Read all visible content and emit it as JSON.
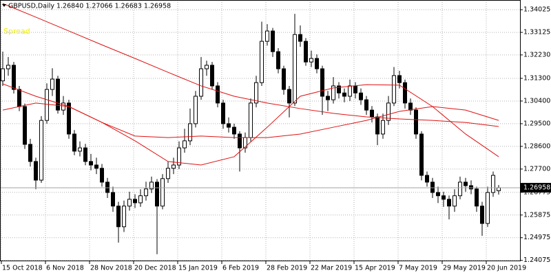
{
  "chart_data": {
    "type": "candlestick",
    "title": "GBPUSD,Daily  1.26840 1.27066 1.26683 1.26958",
    "annotation": "Spread",
    "categories": [
      "15 Oct 2018",
      null,
      null,
      null,
      null,
      null,
      null,
      null,
      "6 Nov 2018",
      null,
      null,
      null,
      null,
      null,
      null,
      null,
      "28 Nov 2018",
      null,
      null,
      null,
      null,
      null,
      null,
      null,
      "20 Dec 2018",
      null,
      null,
      null,
      null,
      null,
      null,
      null,
      "15 Jan 2019",
      null,
      null,
      null,
      null,
      null,
      null,
      null,
      "6 Feb 2019",
      null,
      null,
      null,
      null,
      null,
      null,
      null,
      "28 Feb 2019",
      null,
      null,
      null,
      null,
      null,
      null,
      null,
      "22 Mar 2019",
      null,
      null,
      null,
      null,
      null,
      null,
      null,
      "15 Apr 2019",
      null,
      null,
      null,
      null,
      null,
      null,
      null,
      "7 May 2019",
      null,
      null,
      null,
      null,
      null,
      null,
      null,
      "29 May 2019",
      null,
      null,
      null,
      null,
      null,
      null,
      null,
      "20 Jun 2019",
      null,
      null
    ],
    "open": [
      1.312,
      1.3168,
      1.3182,
      1.3086,
      1.3018,
      1.2868,
      1.28,
      1.2726,
      1.2963,
      1.3086,
      1.3127,
      1.3004,
      1.3032,
      1.2909,
      1.2841,
      1.2854,
      1.28,
      1.2786,
      1.2773,
      1.2718,
      1.2677,
      1.2623,
      1.2541,
      1.2623,
      1.265,
      1.2636,
      1.2664,
      1.2691,
      1.2718,
      1.2623,
      1.2732,
      1.2773,
      1.2786,
      1.2854,
      1.2882,
      1.295,
      1.3059,
      1.3168,
      1.3182,
      1.31,
      1.3032,
      1.295,
      1.2936,
      1.2909,
      1.2854,
      1.2895,
      1.3032,
      1.3113,
      1.3277,
      1.3318,
      1.3236,
      1.3168,
      1.3086,
      1.3032,
      1.3304,
      1.3277,
      1.3195,
      1.3209,
      1.3168,
      1.3059,
      1.3045,
      1.31,
      1.3072,
      1.3059,
      1.31,
      1.3072,
      1.3045,
      1.3004,
      1.2977,
      1.2909,
      1.2963,
      1.3032,
      1.3141,
      1.3113,
      1.3032,
      1.3004,
      1.2909,
      1.2745,
      1.2718,
      1.2677,
      1.2664,
      1.265,
      1.2623,
      1.2664,
      1.2718,
      1.2704,
      1.2691,
      1.2623,
      1.2554,
      1.2677,
      1.2684
    ],
    "high": [
      1.3236,
      1.3215,
      1.3195,
      1.31,
      1.303,
      1.289,
      1.2815,
      1.298,
      1.311,
      1.317,
      1.314,
      1.306,
      1.3045,
      1.2925,
      1.288,
      1.287,
      1.283,
      1.2815,
      1.279,
      1.2735,
      1.27,
      1.264,
      1.2645,
      1.268,
      1.267,
      1.269,
      1.272,
      1.274,
      1.273,
      1.275,
      1.28,
      1.2815,
      1.288,
      1.293,
      1.301,
      1.308,
      1.3215,
      1.32,
      1.3195,
      1.3115,
      1.3045,
      1.2975,
      1.295,
      1.292,
      1.2915,
      1.305,
      1.314,
      1.3355,
      1.3345,
      1.333,
      1.325,
      1.318,
      1.31,
      1.3386,
      1.334,
      1.329,
      1.324,
      1.3225,
      1.318,
      1.308,
      1.3135,
      1.3115,
      1.309,
      1.3125,
      1.3115,
      1.309,
      1.306,
      1.302,
      1.299,
      1.299,
      1.306,
      1.3175,
      1.316,
      1.3125,
      1.305,
      1.3015,
      1.292,
      1.276,
      1.2735,
      1.27,
      1.268,
      1.2665,
      1.269,
      1.274,
      1.2735,
      1.2725,
      1.27,
      1.264,
      1.27,
      1.276,
      1.27066
    ],
    "low": [
      1.31,
      1.314,
      1.307,
      1.3,
      1.285,
      1.278,
      1.269,
      1.2715,
      1.295,
      1.306,
      1.299,
      1.2985,
      1.289,
      1.2825,
      1.282,
      1.2785,
      1.2765,
      1.275,
      1.27,
      1.2655,
      1.26,
      1.2478,
      1.252,
      1.2605,
      1.2615,
      1.262,
      1.2645,
      1.2675,
      1.2432,
      1.261,
      1.2715,
      1.275,
      1.277,
      1.2835,
      1.2865,
      1.2935,
      1.3045,
      1.314,
      1.3085,
      1.3015,
      1.293,
      1.2915,
      1.289,
      1.276,
      1.2835,
      1.288,
      1.3015,
      1.31,
      1.326,
      1.3215,
      1.315,
      1.3065,
      1.2975,
      1.302,
      1.3255,
      1.318,
      1.3175,
      1.315,
      1.2985,
      1.3,
      1.303,
      1.305,
      1.3035,
      1.304,
      1.305,
      1.3025,
      1.2985,
      1.2955,
      1.2865,
      1.289,
      1.2945,
      1.302,
      1.309,
      1.301,
      1.2985,
      1.289,
      1.2725,
      1.27,
      1.2655,
      1.2635,
      1.262,
      1.257,
      1.26,
      1.265,
      1.268,
      1.267,
      1.26,
      1.2505,
      1.254,
      1.266,
      1.26683
    ],
    "close": [
      1.3168,
      1.3182,
      1.3086,
      1.3018,
      1.2868,
      1.28,
      1.2726,
      1.2963,
      1.3086,
      1.3127,
      1.3004,
      1.3032,
      1.2909,
      1.2841,
      1.2854,
      1.28,
      1.2786,
      1.2773,
      1.2718,
      1.2677,
      1.2623,
      1.2541,
      1.2623,
      1.265,
      1.2636,
      1.2664,
      1.2691,
      1.2718,
      1.2623,
      1.2732,
      1.2773,
      1.2786,
      1.2854,
      1.2882,
      1.295,
      1.3059,
      1.3168,
      1.3182,
      1.31,
      1.3032,
      1.295,
      1.2936,
      1.2909,
      1.2854,
      1.2895,
      1.3032,
      1.3113,
      1.3277,
      1.3318,
      1.3236,
      1.3168,
      1.3086,
      1.3032,
      1.3304,
      1.3277,
      1.3195,
      1.3209,
      1.3168,
      1.3059,
      1.3045,
      1.31,
      1.3072,
      1.3059,
      1.31,
      1.3072,
      1.3045,
      1.3004,
      1.2977,
      1.2909,
      1.2963,
      1.3032,
      1.3141,
      1.3113,
      1.3032,
      1.3004,
      1.2909,
      1.2745,
      1.2718,
      1.2677,
      1.2664,
      1.265,
      1.2623,
      1.2664,
      1.2718,
      1.2704,
      1.2691,
      1.2623,
      1.2554,
      1.2677,
      1.2745,
      1.26958
    ],
    "series": [
      {
        "color": "#e01010",
        "x": [
          0,
          6,
          12,
          18,
          24,
          30,
          36,
          42,
          48,
          54,
          60,
          66,
          72,
          78,
          84,
          90
        ],
        "values": [
          1.3427,
          1.3373,
          1.3318,
          1.3263,
          1.3209,
          1.3154,
          1.31,
          1.3059,
          1.3032,
          1.301,
          1.2991,
          1.2977,
          1.2969,
          1.2963,
          1.2955,
          1.2939
        ]
      },
      {
        "color": "#e01010",
        "x": [
          0,
          6,
          12,
          18,
          24,
          30,
          36,
          42,
          48,
          54,
          60,
          66,
          72,
          78,
          84,
          90
        ],
        "values": [
          1.3004,
          1.3032,
          1.3018,
          1.2955,
          1.2901,
          1.2895,
          1.2901,
          1.2895,
          1.2895,
          1.2909,
          1.2936,
          1.2963,
          1.2999,
          1.3018,
          1.3004,
          1.2963
        ]
      },
      {
        "color": "#e01010",
        "x": [
          0,
          6,
          12,
          18,
          24,
          30,
          36,
          42,
          48,
          54,
          60,
          66,
          72,
          78,
          84,
          90
        ],
        "values": [
          1.3108,
          1.3059,
          1.3018,
          1.2955,
          1.2882,
          1.28,
          1.2786,
          1.2819,
          1.2936,
          1.3059,
          1.3092,
          1.3105,
          1.3103,
          1.3018,
          1.2909,
          1.2819
        ]
      }
    ],
    "ylim": [
      1.2404,
      1.3441
    ],
    "yticks": [
      1.34025,
      1.33125,
      {
        "value": 1.3223,
        "label": "1.32230"
      },
      {
        "value": 1.313,
        "label": "1.31300"
      },
      {
        "value": 1.304,
        "label": "1.30400"
      },
      {
        "value": 1.295,
        "label": "1.29500"
      },
      {
        "value": 1.286,
        "label": "1.28600"
      },
      {
        "value": 1.277,
        "label": "1.27700"
      },
      1.26775,
      1.25875,
      1.24975,
      1.24075
    ],
    "grid": true,
    "bull_color": "#ffffff",
    "bear_color": "#000000",
    "annotation_color": "#f0f000"
  }
}
